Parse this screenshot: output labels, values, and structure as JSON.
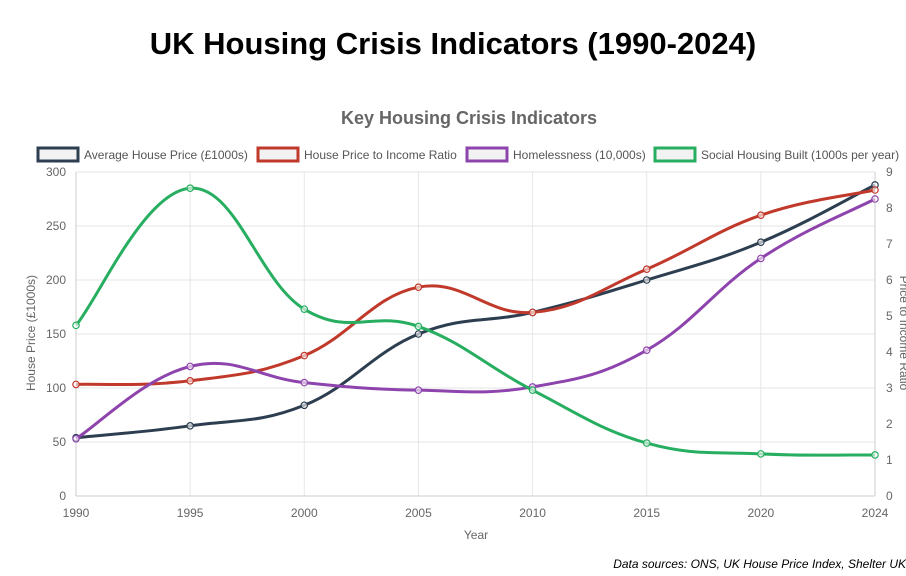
{
  "page": {
    "title": "UK Housing Crisis Indicators (1990-2024)",
    "source": "Data sources: ONS, UK House Price Index, Shelter UK"
  },
  "chart_data": {
    "type": "line",
    "title": "Key Housing Crisis Indicators",
    "xlabel": "Year",
    "ylabel": "House Price (£1000s)",
    "y2label": "Price to Income Ratio",
    "categories": [
      "1990",
      "1995",
      "2000",
      "2005",
      "2010",
      "2015",
      "2020",
      "2024"
    ],
    "ylim": [
      0,
      300
    ],
    "y2lim": [
      0,
      9
    ],
    "yticks": [
      "0",
      "50",
      "100",
      "150",
      "200",
      "250",
      "300"
    ],
    "y2ticks": [
      "0",
      "1",
      "2",
      "3",
      "4",
      "5",
      "6",
      "7",
      "8",
      "9"
    ],
    "grid": true,
    "legend_position": "top",
    "series": [
      {
        "name": "Average House Price (£1000s)",
        "axis": "left",
        "color": "#2c3e50",
        "values": [
          54,
          65,
          84,
          150,
          170,
          200,
          235,
          288
        ]
      },
      {
        "name": "House Price to Income Ratio",
        "axis": "right",
        "color": "#c0392b",
        "values": [
          3.1,
          3.2,
          3.9,
          5.8,
          5.1,
          6.3,
          7.8,
          8.5
        ]
      },
      {
        "name": "Homelessness (10,000s)",
        "axis": "left",
        "color": "#8e44ad",
        "values": [
          53,
          120,
          105,
          98,
          101,
          135,
          220,
          275
        ]
      },
      {
        "name": "Social Housing Built (1000s per year)",
        "axis": "left",
        "color": "#27ae60",
        "values": [
          158,
          285,
          173,
          157,
          98,
          49,
          39,
          38
        ]
      }
    ]
  }
}
